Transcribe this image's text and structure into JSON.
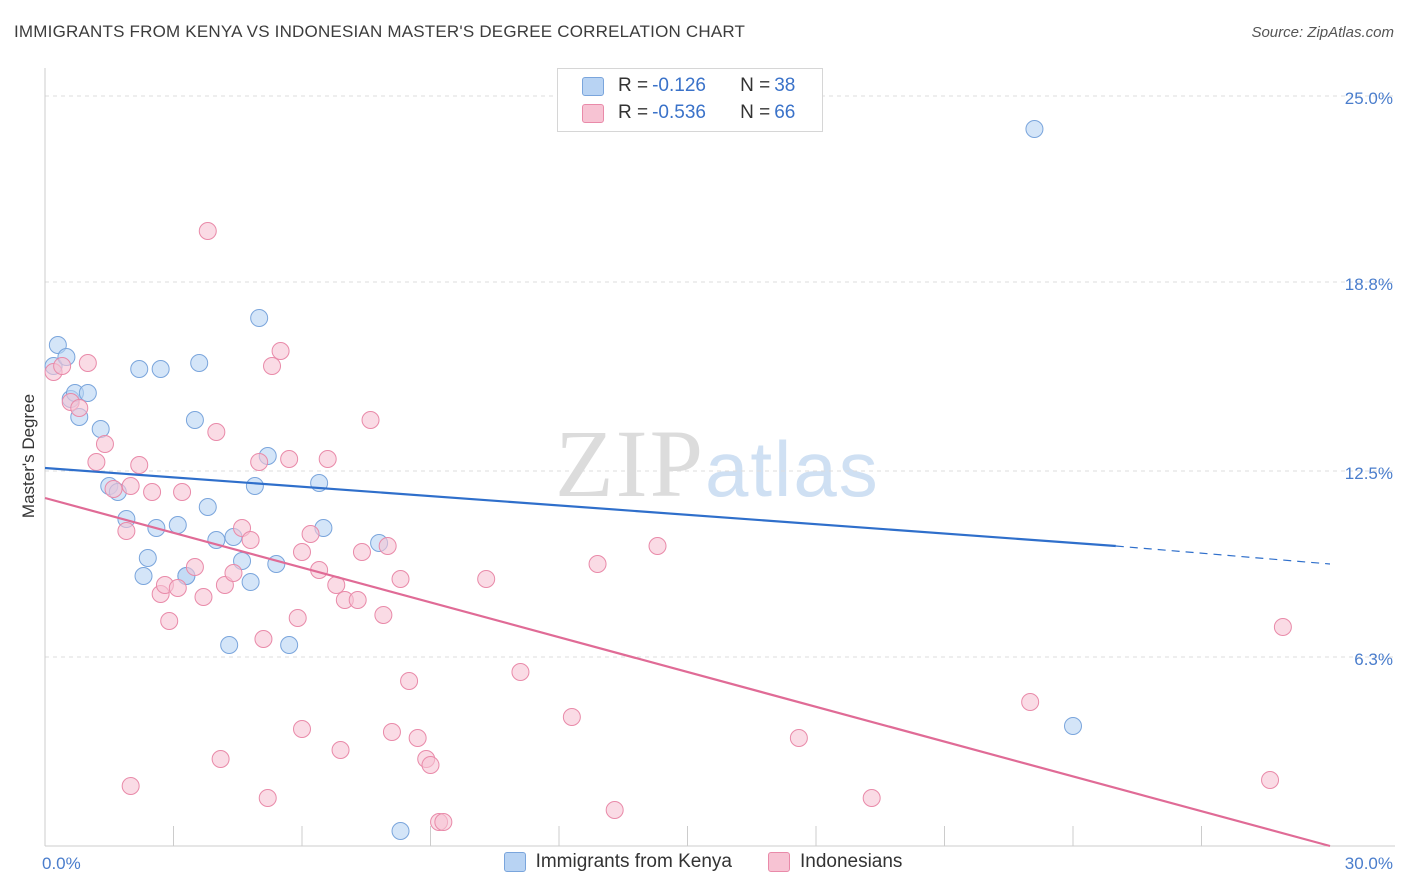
{
  "title": "IMMIGRANTS FROM KENYA VS INDONESIAN MASTER'S DEGREE CORRELATION CHART",
  "source": "Source: ZipAtlas.com",
  "watermark": {
    "zip": "ZIP",
    "atlas": "atlas"
  },
  "colors": {
    "blue_fill": "#b8d3f3",
    "blue_stroke": "#7aa5dc",
    "blue_line": "#2f6fcb",
    "pink_fill": "#f7c3d3",
    "pink_stroke": "#e98aa9",
    "pink_line": "#e06b96",
    "tick_text": "#4a7dcc",
    "grid": "#dddddd",
    "axis": "#cccccc"
  },
  "legend_top": [
    {
      "label": "R =",
      "r": "-0.126",
      "n_label": "N =",
      "n": "38",
      "color": "blue"
    },
    {
      "label": "R =",
      "r": "-0.536",
      "n_label": "N =",
      "n": "66",
      "color": "pink"
    }
  ],
  "chart_data": {
    "type": "scatter",
    "title": "IMMIGRANTS FROM KENYA VS INDONESIAN MASTER'S DEGREE CORRELATION CHART",
    "xlabel": "",
    "ylabel": "Master's Degree",
    "xlim": [
      0,
      30
    ],
    "ylim": [
      0,
      25.6
    ],
    "x_tick_labels": [
      {
        "value": 0,
        "label": "0.0%"
      },
      {
        "value": 30,
        "label": "30.0%"
      }
    ],
    "y_tick_labels": [
      {
        "value": 25.0,
        "label": "25.0%"
      },
      {
        "value": 18.8,
        "label": "18.8%"
      },
      {
        "value": 12.5,
        "label": "12.5%"
      },
      {
        "value": 6.3,
        "label": "6.3%"
      }
    ],
    "x_minor_ticks": [
      3,
      6,
      9,
      12,
      15,
      18,
      21,
      24,
      27
    ],
    "legend": [
      "Immigrants from Kenya",
      "Indonesians"
    ],
    "series": [
      {
        "name": "Immigrants from Kenya",
        "color": "blue",
        "points": [
          [
            0.2,
            16.0
          ],
          [
            0.3,
            16.7
          ],
          [
            0.5,
            16.3
          ],
          [
            0.6,
            14.9
          ],
          [
            0.7,
            15.1
          ],
          [
            0.8,
            14.3
          ],
          [
            1.0,
            15.1
          ],
          [
            1.3,
            13.9
          ],
          [
            1.5,
            12.0
          ],
          [
            1.7,
            11.8
          ],
          [
            1.9,
            10.9
          ],
          [
            2.2,
            15.9
          ],
          [
            2.4,
            9.6
          ],
          [
            2.6,
            10.6
          ],
          [
            2.7,
            15.9
          ],
          [
            3.1,
            10.7
          ],
          [
            3.3,
            9.0
          ],
          [
            3.3,
            9.0
          ],
          [
            3.5,
            14.2
          ],
          [
            3.6,
            16.1
          ],
          [
            3.8,
            11.3
          ],
          [
            4.0,
            10.2
          ],
          [
            4.4,
            10.3
          ],
          [
            4.6,
            9.5
          ],
          [
            4.8,
            8.8
          ],
          [
            4.9,
            12.0
          ],
          [
            5.0,
            17.6
          ],
          [
            5.2,
            13.0
          ],
          [
            5.4,
            9.4
          ],
          [
            4.3,
            6.7
          ],
          [
            5.7,
            6.7
          ],
          [
            6.4,
            12.1
          ],
          [
            6.5,
            10.6
          ],
          [
            7.8,
            10.1
          ],
          [
            8.3,
            0.5
          ],
          [
            2.3,
            9.0
          ],
          [
            23.1,
            23.9
          ],
          [
            24.0,
            4.0
          ]
        ]
      },
      {
        "name": "Indonesians",
        "color": "pink",
        "points": [
          [
            0.2,
            15.8
          ],
          [
            0.4,
            16.0
          ],
          [
            0.6,
            14.8
          ],
          [
            0.8,
            14.6
          ],
          [
            1.0,
            16.1
          ],
          [
            1.2,
            12.8
          ],
          [
            1.4,
            13.4
          ],
          [
            1.6,
            11.9
          ],
          [
            1.9,
            10.5
          ],
          [
            2.0,
            12.0
          ],
          [
            2.2,
            12.7
          ],
          [
            2.5,
            11.8
          ],
          [
            2.7,
            8.4
          ],
          [
            2.8,
            8.7
          ],
          [
            2.9,
            7.5
          ],
          [
            3.1,
            8.6
          ],
          [
            3.2,
            11.8
          ],
          [
            3.5,
            9.3
          ],
          [
            3.7,
            8.3
          ],
          [
            3.8,
            20.5
          ],
          [
            4.0,
            13.8
          ],
          [
            4.2,
            8.7
          ],
          [
            4.4,
            9.1
          ],
          [
            4.6,
            10.6
          ],
          [
            4.8,
            10.2
          ],
          [
            5.0,
            12.8
          ],
          [
            5.1,
            6.9
          ],
          [
            5.3,
            16.0
          ],
          [
            5.5,
            16.5
          ],
          [
            5.7,
            12.9
          ],
          [
            5.9,
            7.6
          ],
          [
            6.0,
            9.8
          ],
          [
            6.2,
            10.4
          ],
          [
            6.4,
            9.2
          ],
          [
            6.6,
            12.9
          ],
          [
            6.8,
            8.7
          ],
          [
            7.0,
            8.2
          ],
          [
            7.3,
            8.2
          ],
          [
            7.4,
            9.8
          ],
          [
            7.6,
            14.2
          ],
          [
            7.9,
            7.7
          ],
          [
            8.0,
            10.0
          ],
          [
            8.3,
            8.9
          ],
          [
            8.5,
            5.5
          ],
          [
            8.7,
            3.6
          ],
          [
            8.9,
            2.9
          ],
          [
            9.0,
            2.7
          ],
          [
            9.2,
            0.8
          ],
          [
            9.3,
            0.8
          ],
          [
            4.1,
            2.9
          ],
          [
            5.2,
            1.6
          ],
          [
            6.0,
            3.9
          ],
          [
            6.9,
            3.2
          ],
          [
            8.1,
            3.8
          ],
          [
            10.3,
            8.9
          ],
          [
            11.1,
            5.8
          ],
          [
            12.3,
            4.3
          ],
          [
            12.9,
            9.4
          ],
          [
            13.3,
            1.2
          ],
          [
            14.3,
            10.0
          ],
          [
            17.6,
            3.6
          ],
          [
            19.3,
            1.6
          ],
          [
            23.0,
            4.8
          ],
          [
            28.6,
            2.2
          ],
          [
            28.9,
            7.3
          ],
          [
            2.0,
            2.0
          ]
        ]
      }
    ],
    "trend_lines": [
      {
        "series": "Immigrants from Kenya",
        "x_solid": [
          0,
          25
        ],
        "y_solid": [
          12.6,
          10.0
        ],
        "x_dash": [
          25,
          30
        ],
        "y_dash": [
          10.0,
          9.4
        ]
      },
      {
        "series": "Indonesians",
        "x": [
          0,
          30
        ],
        "y": [
          11.6,
          0.0
        ]
      }
    ]
  }
}
